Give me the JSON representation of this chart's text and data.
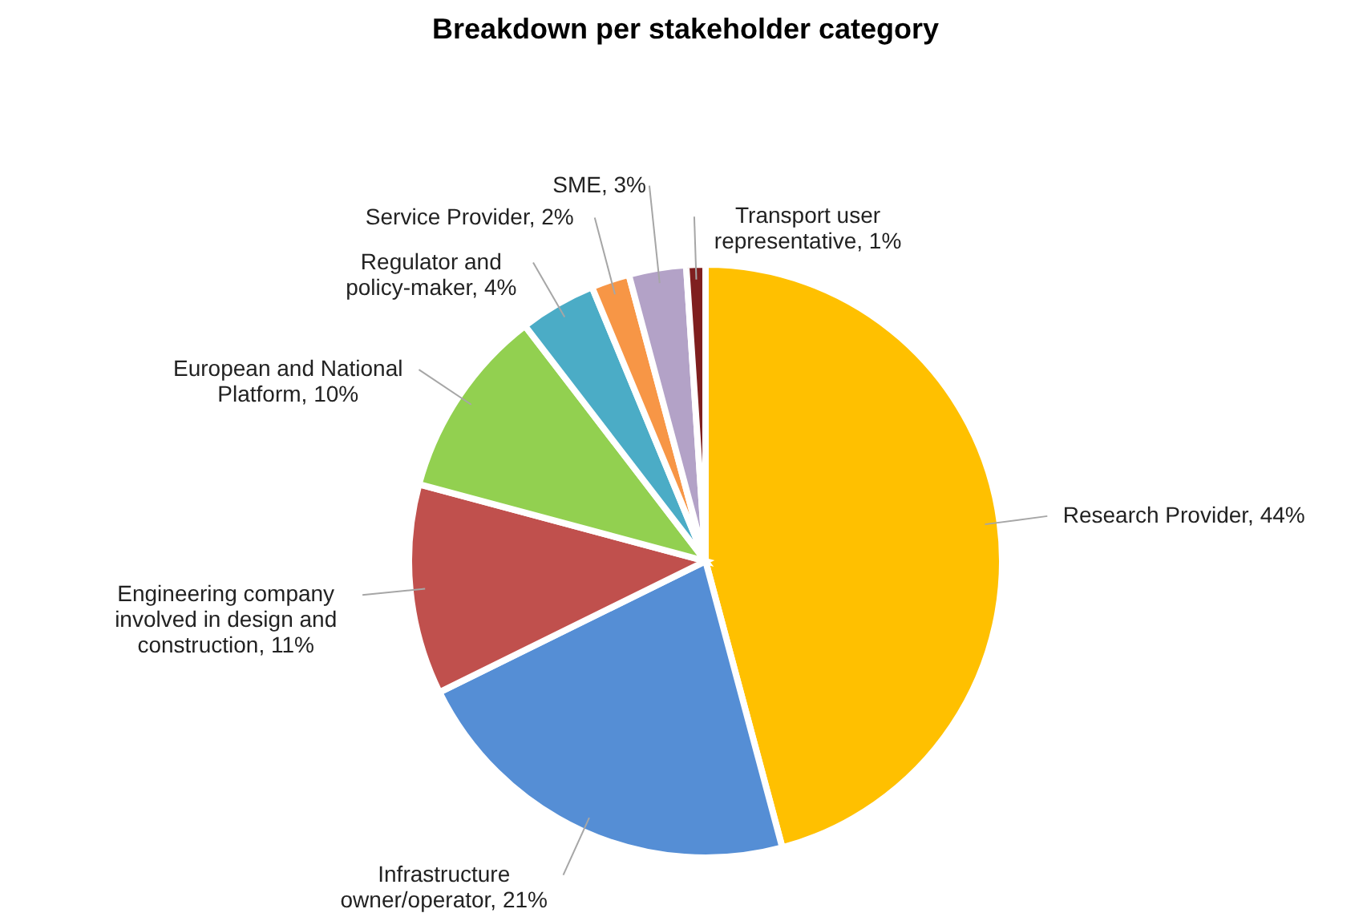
{
  "chart_data": {
    "type": "pie",
    "title": "Breakdown per stakeholder category",
    "categories": [
      "Research Provider",
      "Infrastructure owner/operator",
      "Engineering company involved in design and construction",
      "European and National Platform",
      "Regulator and policy-maker",
      "Service Provider",
      "SME",
      "Transport user representative"
    ],
    "values": [
      44,
      21,
      11,
      10,
      4,
      2,
      3,
      1
    ],
    "value_labels": [
      "44%",
      "21%",
      "11%",
      "10%",
      "4%",
      "2%",
      "3%",
      "1%"
    ],
    "colors": [
      "#ffc000",
      "#558ed5",
      "#c0504d",
      "#92d050",
      "#4bacc6",
      "#f79646",
      "#b3a2c7",
      "#7f1f1f"
    ]
  }
}
